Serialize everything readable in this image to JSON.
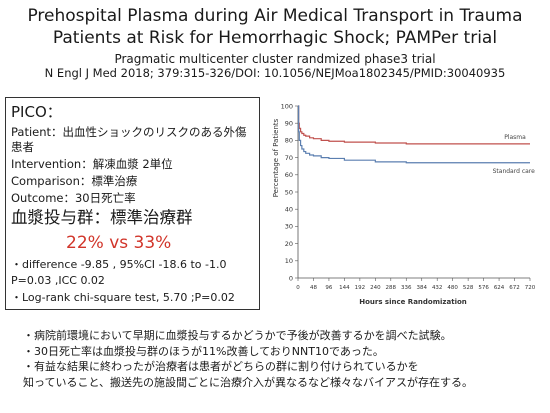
{
  "header": {
    "title_line1": "Prehospital Plasma during Air Medical Transport in Trauma",
    "title_line2": "Patients at Risk for Hemorrhagic Shock; PAMPer trial",
    "subtitle": "Pragmatic multicenter cluster randmized phase3 trial",
    "citation": "N Engl J Med 2018; 379:315-326/DOI: 10.1056/NEJMoa1802345/PMID:30040935"
  },
  "pico": {
    "heading": "PICO：",
    "patient_line1": "Patient：出血性ショックのリスクのある外傷",
    "patient_line2": "患者",
    "intervention": "Intervention：解凍血漿 2単位",
    "comparison": "Comparison：標準治療",
    "outcome": "Outcome：30日死亡率",
    "result_groups": "血漿投与群：標準治療群",
    "result_values": "22% vs 33%",
    "difference": "・difference -9.85 , 95%CI -18.6 to -1.0",
    "p_icc": "P=0.03 ,ICC 0.02",
    "logrank": "・Log-rank chi-square test, 5.70 ;P=0.02"
  },
  "chart_data": {
    "type": "line",
    "title": "",
    "xlabel": "Hours since Randomization",
    "ylabel": "Percentage of Patients",
    "xlim": [
      0,
      720
    ],
    "ylim": [
      0,
      100
    ],
    "xticks": [
      0,
      48,
      96,
      144,
      192,
      240,
      288,
      336,
      384,
      432,
      480,
      528,
      576,
      624,
      672,
      720
    ],
    "yticks": [
      0,
      10,
      20,
      30,
      40,
      50,
      60,
      70,
      80,
      90,
      100
    ],
    "grid": false,
    "series": [
      {
        "name": "Plasma",
        "color": "#c0504d",
        "x": [
          0,
          2,
          4,
          8,
          12,
          18,
          24,
          36,
          48,
          72,
          96,
          144,
          240,
          336,
          432,
          528,
          624,
          720
        ],
        "values": [
          100,
          90,
          87,
          85,
          84,
          83,
          82.5,
          81.5,
          81,
          80,
          79.5,
          79,
          78.5,
          78,
          78,
          78,
          78,
          78
        ]
      },
      {
        "name": "Standard care",
        "color": "#5b7fb0",
        "x": [
          0,
          2,
          4,
          8,
          12,
          18,
          24,
          36,
          48,
          72,
          96,
          144,
          240,
          336,
          432,
          528,
          624,
          720
        ],
        "values": [
          100,
          85,
          80,
          77,
          75,
          73.5,
          72.5,
          71.5,
          71,
          70,
          69.5,
          68.5,
          67.5,
          67,
          67,
          67,
          67,
          67
        ]
      }
    ]
  },
  "bullets": [
    "・病院前環境において早期に血漿投与するかどうかで予後が改善するかを調べた試験。",
    "・30日死亡率は血漿投与群のほうが11%改善しておりNNT10であった。",
    "・有益な結果に終わったが治療者は患者がどちらの群に割り付けられているかを",
    "知っていること、搬送先の施設間ごとに治療介入が異なるなど様々なバイアスが存在する。"
  ]
}
